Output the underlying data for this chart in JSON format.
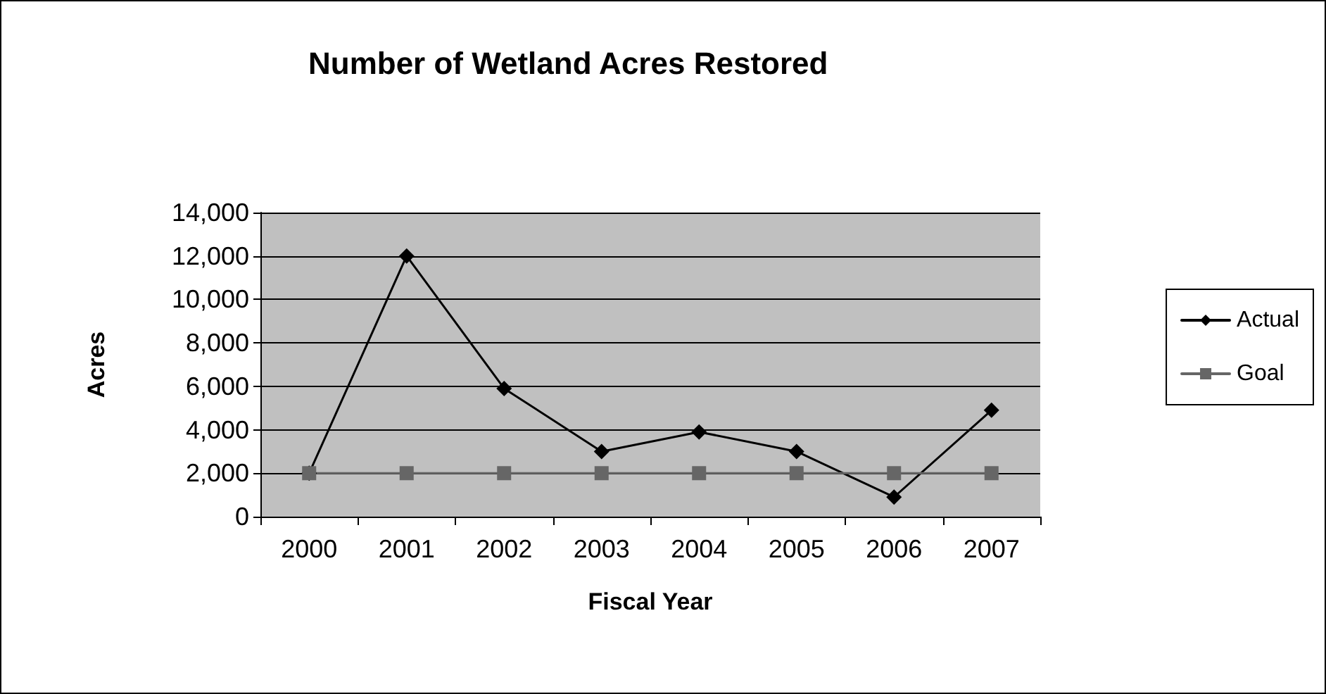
{
  "chart_data": {
    "type": "line",
    "title": "Number of Wetland Acres Restored",
    "xlabel": "Fiscal Year",
    "ylabel": "Acres",
    "categories": [
      "2000",
      "2001",
      "2002",
      "2003",
      "2004",
      "2005",
      "2006",
      "2007"
    ],
    "series": [
      {
        "name": "Actual",
        "color": "#000000",
        "marker": "diamond",
        "values": [
          2000,
          12000,
          5900,
          3000,
          3900,
          3000,
          900,
          4900
        ]
      },
      {
        "name": "Goal",
        "color": "#666666",
        "marker": "square",
        "values": [
          2000,
          2000,
          2000,
          2000,
          2000,
          2000,
          2000,
          2000
        ]
      }
    ],
    "ylim": [
      0,
      14000
    ],
    "yticks": [
      0,
      {
        "value": 2000,
        "label": "2,000"
      },
      {
        "value": 4000,
        "label": "4,000"
      },
      {
        "value": 6000,
        "label": "6,000"
      },
      {
        "value": 8000,
        "label": "8,000"
      },
      {
        "value": 10000,
        "label": "10,000"
      },
      {
        "value": 12000,
        "label": "12,000"
      },
      {
        "value": 14000,
        "label": "14,000"
      }
    ],
    "grid": "y",
    "legend": "right",
    "line_style": "solid"
  }
}
